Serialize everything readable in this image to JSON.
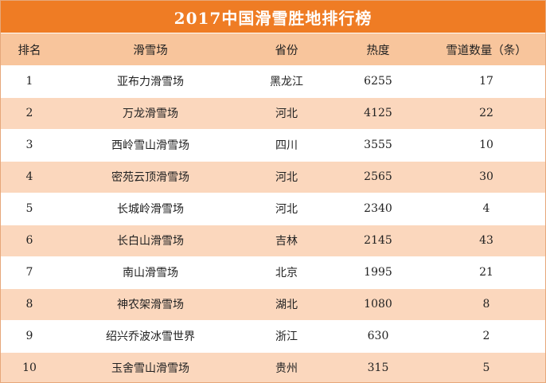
{
  "title": "2017中国滑雪胜地排行榜",
  "colors": {
    "title_bg": "#ef7c24",
    "header_bg": "#f8c59c",
    "row_odd": "#ffffff",
    "row_even": "#fbd7bd",
    "border": "#e6a77a"
  },
  "columns": [
    "排名",
    "滑雪场",
    "省份",
    "热度",
    "雪道数量（条）"
  ],
  "rows": [
    {
      "rank": "1",
      "name": "亚布力滑雪场",
      "province": "黑龙江",
      "heat": "6255",
      "trails": "17"
    },
    {
      "rank": "2",
      "name": "万龙滑雪场",
      "province": "河北",
      "heat": "4125",
      "trails": "22"
    },
    {
      "rank": "3",
      "name": "西岭雪山滑雪场",
      "province": "四川",
      "heat": "3555",
      "trails": "10"
    },
    {
      "rank": "4",
      "name": "密苑云顶滑雪场",
      "province": "河北",
      "heat": "2565",
      "trails": "30"
    },
    {
      "rank": "5",
      "name": "长城岭滑雪场",
      "province": "河北",
      "heat": "2340",
      "trails": "4"
    },
    {
      "rank": "6",
      "name": "长白山滑雪场",
      "province": "吉林",
      "heat": "2145",
      "trails": "43"
    },
    {
      "rank": "7",
      "name": "南山滑雪场",
      "province": "北京",
      "heat": "1995",
      "trails": "21"
    },
    {
      "rank": "8",
      "name": "神农架滑雪场",
      "province": "湖北",
      "heat": "1080",
      "trails": "8"
    },
    {
      "rank": "9",
      "name": "绍兴乔波冰雪世界",
      "province": "浙江",
      "heat": "630",
      "trails": "2"
    },
    {
      "rank": "10",
      "name": "玉舍雪山滑雪场",
      "province": "贵州",
      "heat": "315",
      "trails": "5"
    }
  ]
}
